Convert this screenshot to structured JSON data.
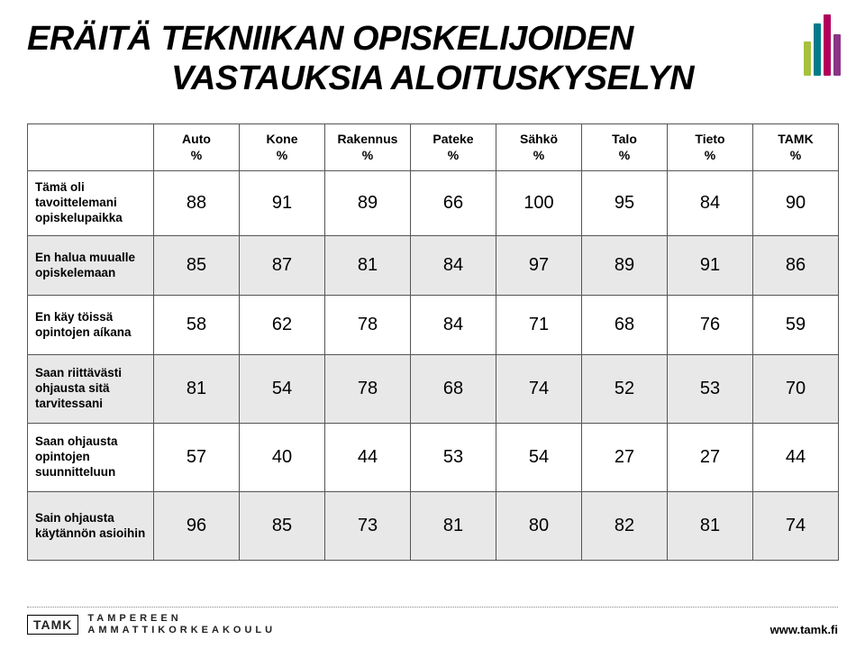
{
  "title": {
    "line1": "ERÄITÄ TEKNIIKAN OPISKELIJOIDEN",
    "line2": "VASTAUKSIA ALOITUSKYSELYN"
  },
  "table": {
    "background_color": "#ffffff",
    "stripe_color": "#e8e8e8",
    "border_color": "#555555",
    "header_fontsize": 14,
    "rowheader_fontsize": 13.5,
    "cell_fontsize": 20,
    "column_widths": {
      "rowheader": 140,
      "data": 95
    },
    "columns": [
      {
        "label_line1": "Auto",
        "label_line2": "%"
      },
      {
        "label_line1": "Kone",
        "label_line2": "%"
      },
      {
        "label_line1": "Rakennus",
        "label_line2": "%"
      },
      {
        "label_line1": "Pateke",
        "label_line2": "%"
      },
      {
        "label_line1": "Sähkö",
        "label_line2": "%"
      },
      {
        "label_line1": "Talo",
        "label_line2": "%"
      },
      {
        "label_line1": "Tieto",
        "label_line2": "%"
      },
      {
        "label_line1": "TAMK",
        "label_line2": "%"
      }
    ],
    "rows": [
      {
        "header": "Tämä oli tavoittelemani opiskelupaikka",
        "stripe": false,
        "cells": [
          "88",
          "91",
          "89",
          "66",
          "100",
          "95",
          "84",
          "90"
        ]
      },
      {
        "header": "En halua muualle opiskelemaan",
        "stripe": true,
        "cells": [
          "85",
          "87",
          "81",
          "84",
          "97",
          "89",
          "91",
          "86"
        ]
      },
      {
        "header": "En käy töissä opintojen aíkana",
        "stripe": false,
        "cells": [
          "58",
          "62",
          "78",
          "84",
          "71",
          "68",
          "76",
          "59"
        ]
      },
      {
        "header": "Saan riittävästi ohjausta sitä tarvitessani",
        "stripe": true,
        "cells": [
          "81",
          "54",
          "78",
          "68",
          "74",
          "52",
          "53",
          "70"
        ]
      },
      {
        "header": "Saan ohjausta opintojen suunnitteluun",
        "stripe": false,
        "cells": [
          "57",
          "40",
          "44",
          "53",
          "54",
          "27",
          "27",
          "44"
        ]
      },
      {
        "header": "Sain ohjausta käytännön asioihin",
        "stripe": true,
        "cells": [
          "96",
          "85",
          "73",
          "81",
          "80",
          "82",
          "81",
          "74"
        ]
      }
    ]
  },
  "logo": {
    "bars": [
      {
        "color": "#a6c13f"
      },
      {
        "color": "#007b8a"
      },
      {
        "color": "#b2005c"
      },
      {
        "color": "#8a3585"
      }
    ]
  },
  "footer": {
    "logo_box": "TAMK",
    "org_line1": "TAMPEREEN",
    "org_line2": "AMMATTIKORKEAKOULU",
    "url": "www.tamk.fi"
  }
}
